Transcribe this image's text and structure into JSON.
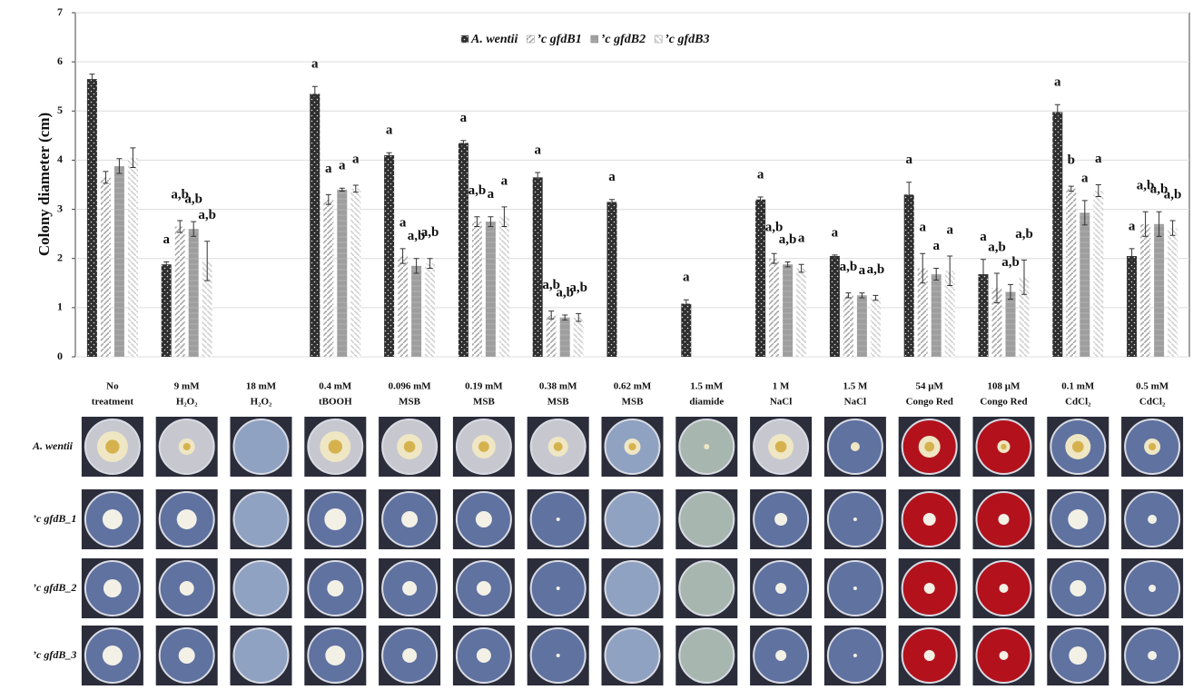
{
  "chart_data": {
    "type": "bar",
    "ylabel": "Colony diameter (cm)",
    "ylim": [
      0,
      7
    ],
    "yticks": [
      0,
      1,
      2,
      3,
      4,
      5,
      6,
      7
    ],
    "grid": true,
    "legend": "top",
    "categories": [
      [
        "No",
        "treatment"
      ],
      [
        "9 mM",
        "H₂O₂"
      ],
      [
        "18 mM",
        "H₂O₂"
      ],
      [
        "0.4 mM",
        "tBOOH"
      ],
      [
        "0.096 mM",
        "MSB"
      ],
      [
        "0.19 mM",
        "MSB"
      ],
      [
        "0.38 mM",
        "MSB"
      ],
      [
        "0.62 mM",
        "MSB"
      ],
      [
        "1.5 mM",
        "diamide"
      ],
      [
        "1 M",
        "NaCl"
      ],
      [
        "1.5 M",
        "NaCl"
      ],
      [
        "54 µM",
        "Congo Red"
      ],
      [
        "108 µM",
        "Congo Red"
      ],
      [
        "0.1 mM",
        "CdCl₂"
      ],
      [
        "0.5 mM",
        "CdCl₂"
      ]
    ],
    "series": [
      {
        "name": "A. wentii",
        "color": "#2e2e2e",
        "values": [
          5.65,
          1.88,
          null,
          5.35,
          4.1,
          4.35,
          3.65,
          3.15,
          1.08,
          3.2,
          2.05,
          3.3,
          1.68,
          4.98,
          2.05
        ],
        "errors": [
          0.1,
          0.05,
          null,
          0.15,
          0.05,
          0.05,
          0.1,
          0.05,
          0.08,
          0.05,
          0.02,
          0.25,
          0.3,
          0.15,
          0.15
        ],
        "letters": [
          null,
          "a",
          null,
          "a",
          "a",
          "a",
          "a",
          "a",
          "a",
          "a",
          "a",
          "a",
          "a",
          "a",
          "a"
        ]
      },
      {
        "name": "’c  gfdB1",
        "color": "#a8a8a8",
        "values": [
          3.65,
          2.65,
          null,
          3.2,
          2.05,
          2.75,
          0.85,
          null,
          null,
          2.0,
          1.25,
          1.8,
          1.4,
          3.42,
          2.7
        ],
        "errors": [
          0.12,
          0.12,
          null,
          0.1,
          0.15,
          0.1,
          0.08,
          null,
          null,
          0.1,
          0.05,
          0.3,
          0.3,
          0.05,
          0.25
        ],
        "letters": [
          null,
          "a,b",
          null,
          "a",
          "a",
          "a,b",
          "a,b",
          null,
          null,
          "a,b",
          "a,b",
          "a",
          "a,b",
          "b",
          "a,b"
        ]
      },
      {
        "name": "’c  gfdB2",
        "color": "#9e9e9e",
        "values": [
          3.88,
          2.6,
          null,
          3.4,
          1.85,
          2.75,
          0.8,
          null,
          null,
          1.88,
          1.25,
          1.68,
          1.32,
          2.93,
          2.7
        ],
        "errors": [
          0.15,
          0.15,
          null,
          0.03,
          0.15,
          0.1,
          0.05,
          null,
          null,
          0.05,
          0.05,
          0.12,
          0.15,
          0.25,
          0.25
        ],
        "letters": [
          null,
          "a,b",
          null,
          "a",
          "a,b",
          "a",
          "a,b",
          null,
          null,
          "a,b",
          "a",
          "a",
          "a,b",
          "a",
          "a,b"
        ]
      },
      {
        "name": "’c  gfdB3",
        "color": "#d0d0d0",
        "values": [
          4.05,
          1.95,
          null,
          3.42,
          1.9,
          2.85,
          0.8,
          null,
          null,
          1.8,
          1.2,
          1.75,
          1.62,
          3.38,
          2.62
        ],
        "errors": [
          0.2,
          0.4,
          null,
          0.07,
          0.1,
          0.2,
          0.08,
          null,
          null,
          0.08,
          0.05,
          0.3,
          0.35,
          0.12,
          0.15
        ],
        "letters": [
          null,
          "a,b",
          null,
          "a",
          "a,b",
          "a",
          "a,b",
          null,
          null,
          "a",
          "a,b",
          "a",
          "a,b",
          "a",
          "a,b"
        ]
      }
    ]
  },
  "photo_rows": [
    "A. wentii",
    "’c  gfdB_1",
    "’c  gfdB_2",
    "’c  gfdB_3"
  ]
}
